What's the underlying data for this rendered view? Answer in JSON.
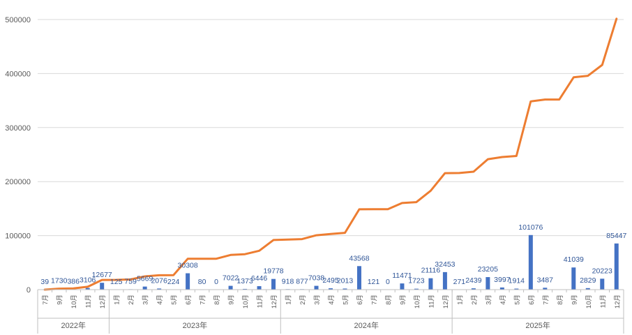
{
  "chart_data": {
    "type": "bar+line",
    "y_ticks": [
      "0",
      "100000",
      "200000",
      "300000",
      "400000",
      "500000"
    ],
    "ylim": [
      0,
      520000
    ],
    "grid": true,
    "colors": {
      "bar": "#4472C4",
      "line": "#ED7D31",
      "label": "#2F5597",
      "grid": "#D9D9D9",
      "axis": "#BFBFBF"
    },
    "groups": [
      {
        "year": "2022年",
        "months": [
          "7月",
          "9月",
          "10月",
          "11月",
          "12月"
        ]
      },
      {
        "year": "2023年",
        "months": [
          "1月",
          "2月",
          "3月",
          "4月",
          "5月",
          "6月",
          "7月",
          "8月",
          "9月",
          "10月",
          "11月",
          "12月"
        ]
      },
      {
        "year": "2024年",
        "months": [
          "1月",
          "2月",
          "3月",
          "4月",
          "5月",
          "6月",
          "7月",
          "8月",
          "9月",
          "10月",
          "11月",
          "12月"
        ]
      },
      {
        "year": "2025年",
        "months": [
          "1月",
          "2月",
          "3月",
          "4月",
          "5月",
          "6月",
          "7月",
          "8月",
          "9月",
          "10月",
          "11月",
          "12月"
        ]
      }
    ],
    "bar_values": [
      39,
      1730,
      386,
      3106,
      12677,
      125,
      759,
      5669,
      2076,
      224,
      30308,
      80,
      0,
      7022,
      1373,
      6446,
      19778,
      918,
      877,
      7038,
      2495,
      2013,
      43568,
      121,
      0,
      11471,
      1723,
      21116,
      32453,
      271,
      2439,
      23205,
      3997,
      1914,
      101076,
      3487,
      null,
      41039,
      2829,
      20223,
      85447
    ],
    "bar_labels": [
      "39",
      "1730",
      "386",
      "3106",
      "12677",
      "125",
      "759",
      "5669",
      "2076",
      "224",
      "30308",
      "80",
      "0",
      "7022",
      "1373",
      "6446",
      "19778",
      "918",
      "877",
      "7038",
      "2495",
      "2013",
      "43568",
      "121",
      "0",
      "11471",
      "1723",
      "21116",
      "32453",
      "271",
      "2439",
      "23205",
      "3997",
      "1914",
      "101076",
      "3487",
      "",
      "41039",
      "2829",
      "20223",
      "85447"
    ],
    "line_values": [
      39,
      1769,
      2155,
      5261,
      17938,
      18063,
      18822,
      24491,
      26567,
      26791,
      57099,
      57179,
      57179,
      64201,
      65574,
      72020,
      91798,
      92716,
      93593,
      100631,
      103126,
      105139,
      148707,
      148828,
      148828,
      160299,
      162022,
      183138,
      215591,
      215862,
      218301,
      241506,
      245503,
      247417,
      348493,
      351980,
      351980,
      393019,
      395848,
      416071,
      501518
    ]
  }
}
